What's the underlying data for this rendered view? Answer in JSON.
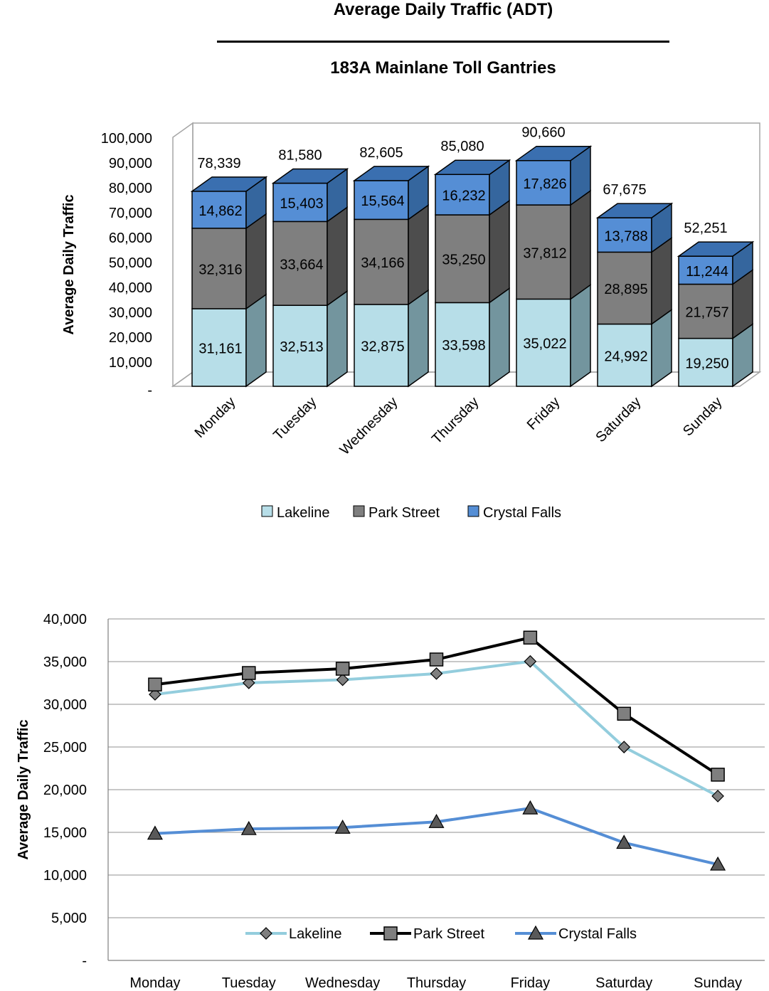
{
  "header": {
    "title": "Average Daily Traffic (ADT)",
    "subtitle": "183A Mainlane Toll Gantries"
  },
  "colors": {
    "lakeline": "#b7dee8",
    "park_street": "#7f7f7f",
    "crystal_falls": "#558ed5",
    "park_street_line": "#000000",
    "lakeline_line": "#93cddd"
  },
  "chart_data": [
    {
      "type": "bar",
      "subtype": "stacked-3d",
      "categories": [
        "Monday",
        "Tuesday",
        "Wednesday",
        "Thursday",
        "Friday",
        "Saturday",
        "Sunday"
      ],
      "series": [
        {
          "name": "Lakeline",
          "values": [
            31161,
            32513,
            32875,
            33598,
            35022,
            24992,
            19250
          ]
        },
        {
          "name": "Park Street",
          "values": [
            32316,
            33664,
            34166,
            35250,
            37812,
            28895,
            21757
          ]
        },
        {
          "name": "Crystal Falls",
          "values": [
            14862,
            15403,
            15564,
            16232,
            17826,
            13788,
            11244
          ]
        }
      ],
      "totals": [
        78339,
        81580,
        82605,
        85080,
        90660,
        67675,
        52251
      ],
      "ylabel": "Average Daily Traffic",
      "ylim": [
        0,
        100000
      ],
      "yticks": [
        "-",
        "10,000",
        "20,000",
        "30,000",
        "40,000",
        "50,000",
        "60,000",
        "70,000",
        "80,000",
        "90,000",
        "100,000"
      ],
      "grid": false,
      "legend": "bottom"
    },
    {
      "type": "line",
      "categories": [
        "Monday",
        "Tuesday",
        "Wednesday",
        "Thursday",
        "Friday",
        "Saturday",
        "Sunday"
      ],
      "series": [
        {
          "name": "Lakeline",
          "marker": "diamond",
          "values": [
            31161,
            32513,
            32875,
            33598,
            35022,
            24992,
            19250
          ]
        },
        {
          "name": "Park Street",
          "marker": "square",
          "values": [
            32316,
            33664,
            34166,
            35250,
            37812,
            28895,
            21757
          ]
        },
        {
          "name": "Crystal Falls",
          "marker": "triangle",
          "values": [
            14862,
            15403,
            15564,
            16232,
            17826,
            13788,
            11244
          ]
        }
      ],
      "ylabel": "Average Daily Traffic",
      "ylim": [
        0,
        40000
      ],
      "yticks": [
        "-",
        "5,000",
        "10,000",
        "15,000",
        "20,000",
        "25,000",
        "30,000",
        "35,000",
        "40,000"
      ],
      "grid": true,
      "legend": "bottom-inside"
    }
  ]
}
